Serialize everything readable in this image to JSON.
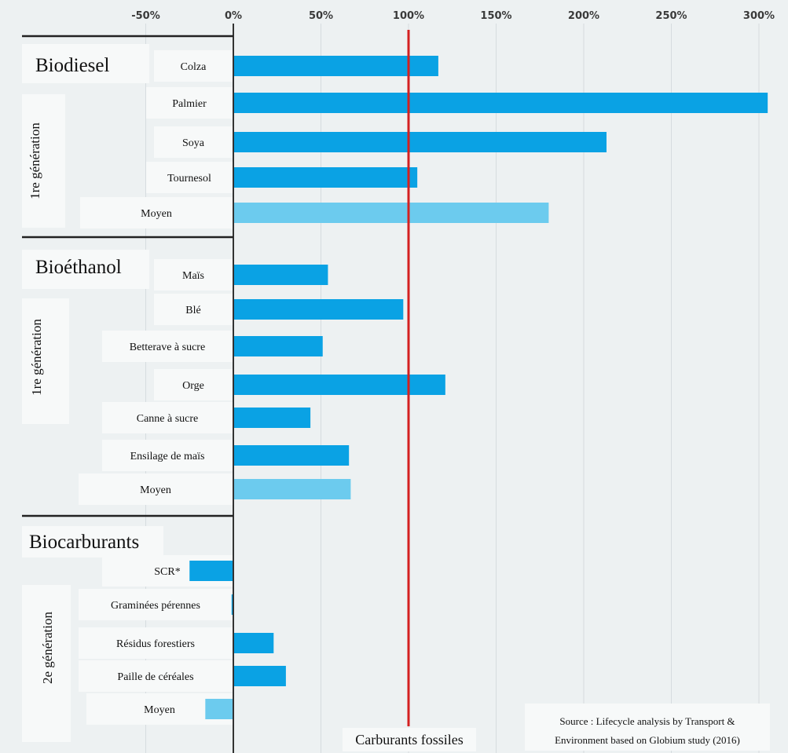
{
  "chart_data": {
    "type": "bar",
    "orientation": "horizontal",
    "xlim": [
      -65,
      305
    ],
    "x_ticks": [
      "-50%",
      "0%",
      "50%",
      "100%",
      "150%",
      "200%",
      "250%",
      "300%"
    ],
    "x_tick_values": [
      -50,
      0,
      50,
      100,
      150,
      200,
      250,
      300
    ],
    "grid": true,
    "reference_line": {
      "value": 100,
      "label": "Carburants fossiles",
      "color": "#d42020"
    },
    "groups": [
      {
        "name": "Biodiesel",
        "generation": "1re génération",
        "categories": [
          "Colza",
          "Palmier",
          "Soya",
          "Tournesol",
          "Moyen"
        ],
        "values": [
          117,
          305,
          213,
          105,
          180
        ]
      },
      {
        "name": "Bioéthanol",
        "generation": "1re génération",
        "categories": [
          "Maïs",
          "Blé",
          "Betterave à sucre",
          "Orge",
          "Canne à sucre",
          "Ensilage de maïs",
          "Moyen"
        ],
        "values": [
          54,
          97,
          51,
          121,
          44,
          66,
          67
        ]
      },
      {
        "name": "Biocarburants",
        "generation": "2e génération",
        "categories": [
          "SCR*",
          "Graminées pérennes",
          "Résidus forestiers",
          "Paille de céréales",
          "Moyen"
        ],
        "values": [
          -25,
          -1,
          23,
          30,
          -16
        ]
      }
    ],
    "colors": {
      "bar": "#0aa2e4",
      "average_bar": "#6ccbee",
      "grid": "#d6dcdf",
      "background": "#edf1f2"
    },
    "source": "Source : Lifecycle analysis by Transport & Environment based on Globium study (2016)",
    "source_lines": [
      "Source : Lifecycle analysis by Transport &",
      "Environment based on Globium study (2016)"
    ]
  }
}
